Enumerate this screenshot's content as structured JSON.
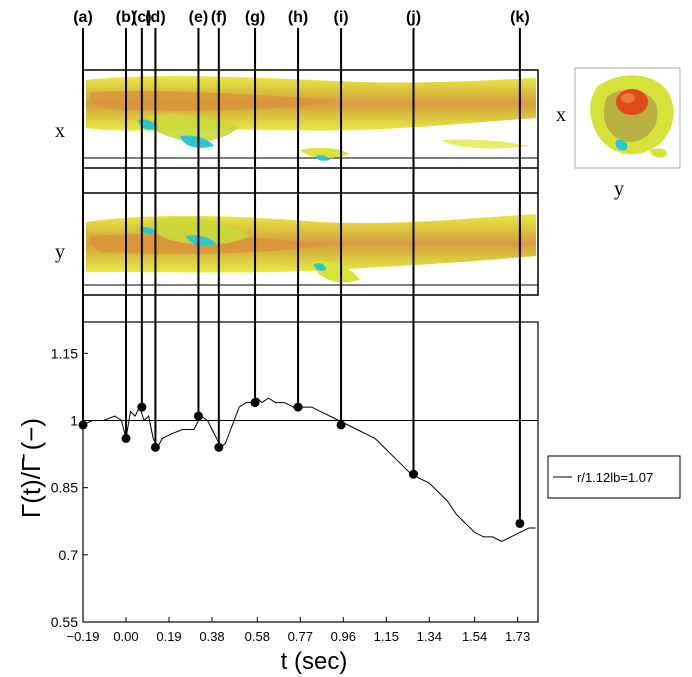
{
  "chart_data": {
    "type": "line",
    "xlabel": "t (sec)",
    "ylabel": "Γ(t)/Γ̄ (−)",
    "xlim": [
      -0.19,
      1.82
    ],
    "ylim": [
      0.55,
      1.22
    ],
    "x_ticks": [
      "-0.19",
      "0.00",
      "0.19",
      "0.38",
      "0.58",
      "0.77",
      "0.96",
      "1.15",
      "1.34",
      "1.54",
      "1.73"
    ],
    "x_tick_values": [
      -0.19,
      0.0,
      0.19,
      0.38,
      0.58,
      0.77,
      0.96,
      1.15,
      1.34,
      1.54,
      1.73
    ],
    "y_ticks": [
      "0.55",
      "0.7",
      "0.85",
      "1",
      "1.15"
    ],
    "y_tick_values": [
      0.55,
      0.7,
      0.85,
      1.0,
      1.15
    ],
    "reference_line": 1.0,
    "legend": {
      "label": "r/1.12lb=1.07",
      "placement": "right"
    },
    "series": [
      {
        "name": "r/1.12lb=1.07",
        "color": "#000000",
        "x": [
          -0.19,
          -0.15,
          -0.1,
          -0.05,
          -0.02,
          0.0,
          0.02,
          0.04,
          0.06,
          0.08,
          0.1,
          0.12,
          0.14,
          0.16,
          0.2,
          0.25,
          0.3,
          0.33,
          0.36,
          0.39,
          0.42,
          0.44,
          0.47,
          0.5,
          0.53,
          0.56,
          0.58,
          0.6,
          0.63,
          0.66,
          0.7,
          0.74,
          0.78,
          0.82,
          0.86,
          0.9,
          0.94,
          0.98,
          1.02,
          1.06,
          1.1,
          1.14,
          1.18,
          1.22,
          1.26,
          1.3,
          1.34,
          1.38,
          1.42,
          1.46,
          1.5,
          1.54,
          1.58,
          1.62,
          1.66,
          1.7,
          1.74,
          1.78,
          1.81
        ],
        "values": [
          0.99,
          1.0,
          1.0,
          1.01,
          1.0,
          0.96,
          1.02,
          1.01,
          1.03,
          1.0,
          1.01,
          0.96,
          0.94,
          0.96,
          0.97,
          0.98,
          0.98,
          1.01,
          1.0,
          0.97,
          0.94,
          0.95,
          0.99,
          1.03,
          1.04,
          1.04,
          1.05,
          1.04,
          1.05,
          1.04,
          1.04,
          1.03,
          1.03,
          1.03,
          1.02,
          1.01,
          1.0,
          0.99,
          0.98,
          0.97,
          0.96,
          0.94,
          0.92,
          0.9,
          0.88,
          0.87,
          0.86,
          0.84,
          0.82,
          0.79,
          0.77,
          0.75,
          0.74,
          0.74,
          0.73,
          0.74,
          0.75,
          0.76,
          0.76
        ]
      }
    ],
    "markers": [
      {
        "label": "(a)",
        "x": -0.19,
        "y": 0.99
      },
      {
        "label": "(b)",
        "x": 0.0,
        "y": 0.96
      },
      {
        "label": "(c)",
        "x": 0.07,
        "y": 1.03
      },
      {
        "label": "(d)",
        "x": 0.13,
        "y": 0.94
      },
      {
        "label": "(e)",
        "x": 0.32,
        "y": 1.01
      },
      {
        "label": "(f)",
        "x": 0.41,
        "y": 0.94
      },
      {
        "label": "(g)",
        "x": 0.57,
        "y": 1.04
      },
      {
        "label": "(h)",
        "x": 0.76,
        "y": 1.03
      },
      {
        "label": "(i)",
        "x": 0.95,
        "y": 0.99
      },
      {
        "label": "(j)",
        "x": 1.27,
        "y": 0.88
      },
      {
        "label": "(k)",
        "x": 1.74,
        "y": 0.77
      }
    ]
  },
  "panels": {
    "top_axis_label": "x",
    "middle_axis_label": "y",
    "inset_side_label": "x",
    "inset_bottom_label": "y"
  }
}
